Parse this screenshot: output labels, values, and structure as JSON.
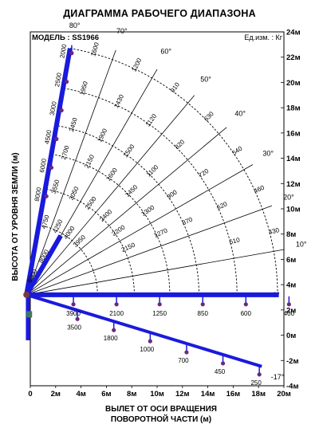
{
  "title": "ДИАГРАММА РАБОЧЕГО ДИАПАЗОНА",
  "model_label": "МОДЕЛЬ : SS1966",
  "units_label": "Ед.изм. : Кг",
  "colors": {
    "boom": "#1a1adc",
    "grid": "#000000",
    "background": "#ffffff"
  },
  "chart_data": {
    "type": "diagram",
    "title": "ДИАГРАММА РАБОЧЕГО ДИАПАЗОНА",
    "xlabel": "ВЫЛЕТ ОТ ОСИ ВРАЩЕНИЯ ПОВОРОТНОЙ ЧАСТИ (м)",
    "ylabel": "ВЫСОТА ОТ УРОВНЯ ЗЕМЛИ (м)",
    "xlim": [
      0,
      20
    ],
    "ylim": [
      -4,
      24
    ],
    "x_ticks": [
      "0",
      "2м",
      "4м",
      "6м",
      "8м",
      "10м",
      "12м",
      "14м",
      "16м",
      "18м",
      "20м"
    ],
    "y_ticks": [
      "-4м",
      "-2м",
      "0м",
      "2м",
      "4м",
      "6м",
      "8м",
      "10м",
      "12м",
      "14м",
      "16м",
      "18м",
      "20м",
      "22м",
      "24м"
    ],
    "boom_base": {
      "x": -0.3,
      "y": 3.2
    },
    "angles": [
      {
        "label": "80°",
        "deg": 80
      },
      {
        "label": "70°",
        "deg": 70
      },
      {
        "label": "60°",
        "deg": 60
      },
      {
        "label": "50°",
        "deg": 50
      },
      {
        "label": "40°",
        "deg": 40
      },
      {
        "label": "30°",
        "deg": 30
      },
      {
        "label": "20°",
        "deg": 20
      },
      {
        "label": "10°",
        "deg": 10
      },
      {
        "label": "0°",
        "deg": 0
      },
      {
        "label": "-17°",
        "deg": -17
      }
    ],
    "arc_loads": [
      [
        "1600",
        "1200",
        "910",
        "630",
        "540",
        "460",
        "430"
      ],
      [
        "1950",
        "1430",
        "1120",
        "820",
        "720",
        "620",
        "610"
      ],
      [
        "2450",
        "1900",
        "1500",
        "1100",
        "900",
        "870"
      ],
      [
        "2700",
        "2150",
        "1600",
        "1450",
        "1300",
        "1270"
      ],
      [
        "3550",
        "3050",
        "2500",
        "2400",
        "2200",
        "2150"
      ],
      [
        "4750",
        "4250",
        "4000",
        "3950"
      ]
    ],
    "boom_loads_80": [
      "2000",
      "2500",
      "3000",
      "4500",
      "6000",
      "8000"
    ],
    "boom_loads_60": [
      "6000",
      "8000"
    ],
    "boom_loads_0": [
      "3900",
      "2100",
      "1250",
      "850",
      "600",
      "400"
    ],
    "boom_loads_neg17": [
      "3500",
      "1800",
      "1000",
      "700",
      "450",
      "250"
    ]
  }
}
